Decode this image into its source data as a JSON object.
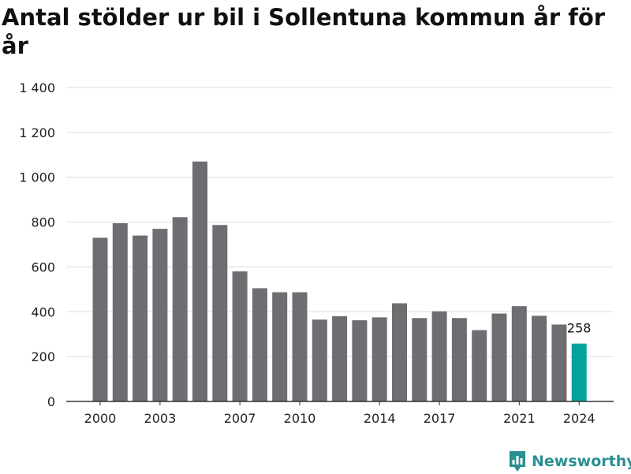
{
  "title": "Antal stölder ur bil i Sollentuna kommun år för år",
  "brand": {
    "name": "Newsworthy",
    "icon": "newsworthy-logo-icon",
    "color": "#2a8f93"
  },
  "chart_data": {
    "type": "bar",
    "title": "Antal stölder ur bil i Sollentuna kommun år för år",
    "xlabel": "",
    "ylabel": "",
    "categories": [
      2000,
      2001,
      2002,
      2003,
      2004,
      2005,
      2006,
      2007,
      2008,
      2009,
      2010,
      2011,
      2012,
      2013,
      2014,
      2015,
      2016,
      2017,
      2018,
      2019,
      2020,
      2021,
      2022,
      2023,
      2024
    ],
    "values": [
      730,
      795,
      740,
      770,
      822,
      1070,
      787,
      580,
      505,
      487,
      487,
      365,
      380,
      362,
      375,
      438,
      372,
      402,
      372,
      318,
      392,
      425,
      382,
      343,
      258
    ],
    "ylim": [
      0,
      1400
    ],
    "yticks": [
      0,
      200,
      400,
      600,
      800,
      1000,
      1200,
      1400
    ],
    "ytick_labels": [
      "0",
      "200",
      "400",
      "600",
      "800",
      "1 000",
      "1 200",
      "1 400"
    ],
    "xticks": [
      2000,
      2003,
      2007,
      2010,
      2014,
      2017,
      2021,
      2024
    ],
    "xtick_labels": [
      "2000",
      "2003",
      "2007",
      "2010",
      "2014",
      "2017",
      "2021",
      "2024"
    ],
    "highlight": {
      "category": 2024,
      "label": "258"
    },
    "grid": true,
    "legend": "none",
    "colors": {
      "bar": "#6e6d72",
      "highlight": "#00a49a",
      "grid": "#dddddd",
      "axis": "#333333"
    }
  }
}
